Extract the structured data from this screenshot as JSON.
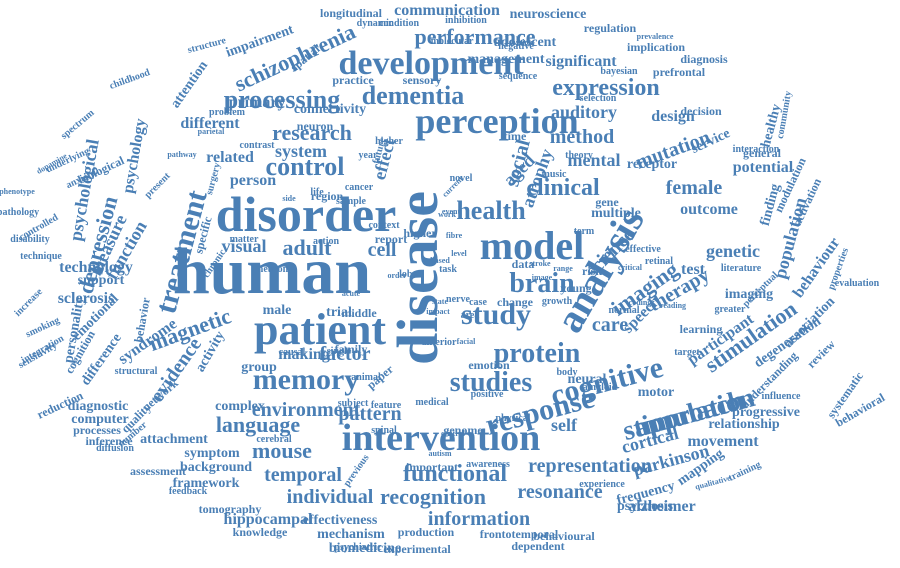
{
  "color": "#4a7fb5",
  "words": [
    "human",
    "disease",
    "disorder",
    "patient",
    "intervention",
    "analysis",
    "perception",
    "development",
    "model",
    "memory",
    "response",
    "cognitive",
    "treatment",
    "dementia",
    "processing",
    "study",
    "studies",
    "protein",
    "brain",
    "health",
    "control",
    "clinical",
    "stimulation",
    "functional",
    "language",
    "expression",
    "performance",
    "research",
    "schizophrenia",
    "communication",
    "neuroscience",
    "longitudinal",
    "adolescent",
    "management",
    "significant",
    "method",
    "mental",
    "social",
    "auditory",
    "system",
    "effect",
    "adult",
    "cell",
    "factor",
    "evidence",
    "activity",
    "magnetic",
    "depression",
    "psychological",
    "psychology",
    "measure",
    "function",
    "technology",
    "support",
    "sclerosis",
    "personality",
    "emotional",
    "cognition",
    "difference",
    "syndrome",
    "network",
    "behavior",
    "visual",
    "person",
    "related",
    "different",
    "primary",
    "attention",
    "impairment",
    "connectivity",
    "neuron",
    "spatial",
    "structure",
    "environment",
    "mouse",
    "temporal",
    "individual",
    "recognition",
    "information",
    "representation",
    "resonance",
    "parkinson",
    "alzheimer",
    "hippocampal",
    "effectiveness",
    "mechanism",
    "biomedicine",
    "frontotemporal",
    "dependent",
    "experimental",
    "behavioural",
    "knowledge",
    "tomography",
    "framework",
    "assessment",
    "background",
    "symptom",
    "attachment",
    "complex",
    "pattern",
    "group",
    "making",
    "male",
    "middle",
    "trial",
    "self",
    "neural",
    "motor",
    "cortical",
    "movement",
    "relationship",
    "progressive",
    "approach",
    "stimulation",
    "participant",
    "therapy",
    "imaging",
    "speech",
    "science",
    "female",
    "mutation",
    "potential",
    "outcome",
    "genetic",
    "multiple",
    "gene",
    "young",
    "risk",
    "data",
    "care",
    "change",
    "case",
    "area",
    "test",
    "imaging",
    "finding",
    "population",
    "behaviour",
    "association",
    "degeneration",
    "understanding",
    "learning",
    "review",
    "evaluation",
    "properties",
    "modulation",
    "activation",
    "perceptual",
    "healthy",
    "community",
    "interaction",
    "general",
    "design",
    "decision",
    "prefrontal",
    "diagnosis",
    "implication",
    "regulation",
    "prevalence",
    "bayesian",
    "sequence",
    "selection",
    "receptor",
    "service",
    "atrophy",
    "aged",
    "time",
    "theory",
    "influence",
    "mapping",
    "frequency",
    "psychosis",
    "experience",
    "training",
    "qualitative",
    "diagnostic",
    "computer",
    "processes",
    "inference",
    "diffusion",
    "reduction",
    "sensitivity",
    "integration",
    "smoking",
    "increase",
    "technique",
    "disability",
    "pathology",
    "phenotype",
    "spectrum",
    "underlying",
    "dopamine",
    "childhood",
    "biological",
    "present",
    "anxiety",
    "controlled",
    "structural",
    "quality",
    "number",
    "cerebral",
    "feedback",
    "psychiatric",
    "production",
    "important",
    "awareness",
    "previous",
    "genome",
    "physical",
    "medical",
    "feature",
    "subject",
    "paper",
    "body",
    "emotion",
    "positive",
    "anterior",
    "family",
    "single",
    "region",
    "action",
    "matter",
    "sample",
    "cancer",
    "report",
    "lobe",
    "higher",
    "work",
    "state",
    "nerve",
    "animal",
    "molecular",
    "negative",
    "inhibition",
    "condition",
    "dynamic",
    "practice",
    "sensory",
    "problem",
    "parietal",
    "contrast",
    "pathway",
    "specific",
    "surgery",
    "chronic",
    "neuron",
    "behavioral",
    "systematic",
    "greater",
    "literature",
    "critical",
    "normal",
    "retinal",
    "effective",
    "based",
    "higher",
    "future",
    "current",
    "event",
    "coding",
    "reading",
    "target",
    "amyloid",
    "growth",
    "impact",
    "facial",
    "spinal",
    "central",
    "autism",
    "causal",
    "acute",
    "music",
    "stroke",
    "range",
    "image",
    "order",
    "term",
    "level",
    "task",
    "fibre",
    "novel",
    "side",
    "life",
    "year",
    "context",
    "vision",
    "child",
    "adolescent"
  ]
}
